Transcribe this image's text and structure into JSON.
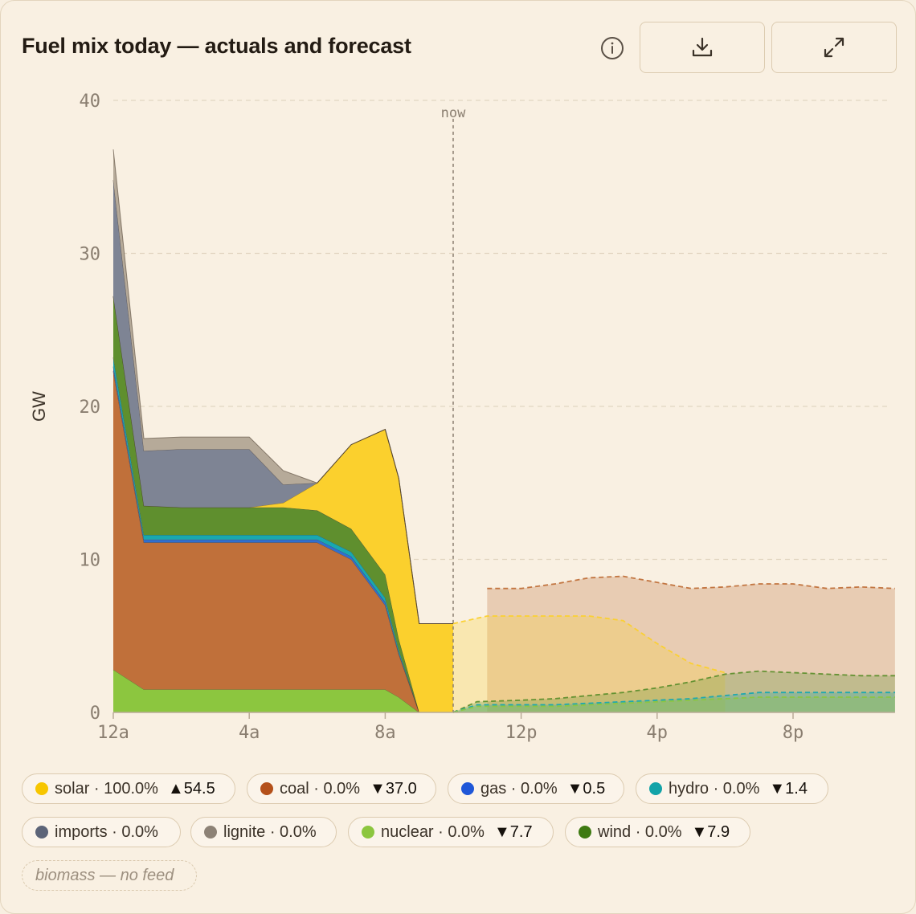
{
  "header": {
    "title": "Fuel mix today — actuals and forecast"
  },
  "icons": {
    "info": "info-icon",
    "download": "download-icon",
    "expand": "expand-icon"
  },
  "chart_data": {
    "type": "area",
    "ylabel": "GW",
    "ylim": [
      0,
      40
    ],
    "y_ticks": [
      "0",
      "10",
      "20",
      "30",
      "40"
    ],
    "x_ticks": [
      "12a",
      "4a",
      "8a",
      "12p",
      "4p",
      "8p"
    ],
    "x_hours": [
      0,
      4,
      8,
      12,
      16,
      20
    ],
    "xlim_hours": [
      0,
      23
    ],
    "now_label": "now",
    "now_hour": 10,
    "grid": true,
    "actuals": {
      "x_hours": [
        0,
        0.9,
        2,
        3,
        4,
        5,
        6,
        7,
        8,
        8.4,
        9,
        10
      ],
      "series": [
        {
          "name": "nuclear",
          "color": "#8cc63f",
          "values": [
            2.8,
            1.5,
            1.5,
            1.5,
            1.5,
            1.5,
            1.5,
            1.5,
            1.5,
            1.0,
            0,
            0
          ]
        },
        {
          "name": "coal",
          "color": "#c0703a",
          "values": [
            19.5,
            9.6,
            9.6,
            9.6,
            9.6,
            9.6,
            9.6,
            8.5,
            5.5,
            2.8,
            0,
            0
          ]
        },
        {
          "name": "gas",
          "color": "#2f6fd1",
          "values": [
            0.3,
            0.2,
            0.2,
            0.2,
            0.2,
            0.2,
            0.2,
            0.2,
            0.2,
            0.1,
            0,
            0
          ]
        },
        {
          "name": "hydro",
          "color": "#18a8b0",
          "values": [
            0.6,
            0.3,
            0.3,
            0.3,
            0.3,
            0.3,
            0.3,
            0.3,
            0.3,
            0.2,
            0,
            0
          ]
        },
        {
          "name": "wind",
          "color": "#5f8f2e",
          "values": [
            4.0,
            1.9,
            1.8,
            1.8,
            1.8,
            1.8,
            1.6,
            1.5,
            1.5,
            0.7,
            0,
            0
          ]
        },
        {
          "name": "solar",
          "color": "#fbd02d",
          "values": [
            0,
            0,
            0,
            0,
            0,
            0.3,
            1.8,
            5.5,
            9.5,
            10.5,
            5.8,
            5.8
          ]
        },
        {
          "name": "imports",
          "color": "#7e8494",
          "values": [
            7.6,
            3.6,
            3.8,
            3.8,
            3.8,
            1.2,
            0,
            0,
            0,
            0,
            0,
            0
          ]
        },
        {
          "name": "lignite",
          "color": "#b6aa99",
          "values": [
            2.0,
            0.8,
            0.8,
            0.8,
            0.8,
            0.9,
            0,
            0,
            0,
            0,
            0,
            0
          ]
        }
      ]
    },
    "forecast": {
      "series": [
        {
          "name": "coal",
          "color": "#c0703a",
          "x_hours": [
            11,
            12,
            13,
            14,
            15,
            16,
            17,
            18,
            19,
            20,
            21,
            22,
            23
          ],
          "values": [
            8.1,
            8.1,
            8.4,
            8.8,
            8.9,
            8.5,
            8.1,
            8.2,
            8.4,
            8.4,
            8.1,
            8.2,
            8.1
          ]
        },
        {
          "name": "solar",
          "color": "#fbd02d",
          "x_hours": [
            10,
            11,
            12,
            13,
            14,
            15,
            16,
            17,
            18
          ],
          "values": [
            5.8,
            6.3,
            6.3,
            6.3,
            6.3,
            6.0,
            4.5,
            3.2,
            2.6
          ]
        },
        {
          "name": "wind",
          "color": "#5f8f2e",
          "x_hours": [
            10,
            10.7,
            12,
            13,
            14,
            15,
            16,
            17,
            18,
            19,
            20,
            21,
            22,
            23
          ],
          "values": [
            0,
            0.7,
            0.8,
            0.9,
            1.1,
            1.3,
            1.6,
            2.0,
            2.5,
            2.7,
            2.6,
            2.5,
            2.4,
            2.4
          ]
        },
        {
          "name": "hydro",
          "color": "#18a8b0",
          "x_hours": [
            10,
            10.7,
            12,
            13,
            14,
            15,
            16,
            17,
            18,
            19,
            20,
            21,
            22,
            23
          ],
          "values": [
            0,
            0.5,
            0.5,
            0.5,
            0.6,
            0.7,
            0.8,
            0.9,
            1.1,
            1.3,
            1.3,
            1.3,
            1.3,
            1.3
          ]
        },
        {
          "name": "nuclear",
          "color": "#8cc63f",
          "x_hours": [
            10,
            10.7,
            12,
            13,
            14,
            15,
            16,
            17,
            18,
            19,
            20,
            21,
            22,
            23
          ],
          "values": [
            0,
            0.4,
            0.4,
            0.4,
            0.5,
            0.6,
            0.7,
            0.8,
            0.9,
            1.0,
            1.0,
            1.0,
            1.0,
            1.0
          ]
        }
      ]
    }
  },
  "legend": [
    {
      "label": "solar · 100.0%",
      "delta": "▲54.5",
      "color": "#f7c600"
    },
    {
      "label": "coal · 0.0%",
      "delta": "▼37.0",
      "color": "#b4501a"
    },
    {
      "label": "gas · 0.0%",
      "delta": "▼0.5",
      "color": "#1f57d8"
    },
    {
      "label": "hydro · 0.0%",
      "delta": "▼1.4",
      "color": "#13a3a8"
    },
    {
      "label": "imports · 0.0%",
      "delta": "",
      "color": "#5c6478"
    },
    {
      "label": "lignite · 0.0%",
      "delta": "",
      "color": "#8d8276"
    },
    {
      "label": "nuclear · 0.0%",
      "delta": "▼7.7",
      "color": "#8cc63f"
    },
    {
      "label": "wind · 0.0%",
      "delta": "▼7.9",
      "color": "#3f7a12"
    }
  ],
  "legend_nofeed": {
    "label": "biomass — no feed"
  }
}
